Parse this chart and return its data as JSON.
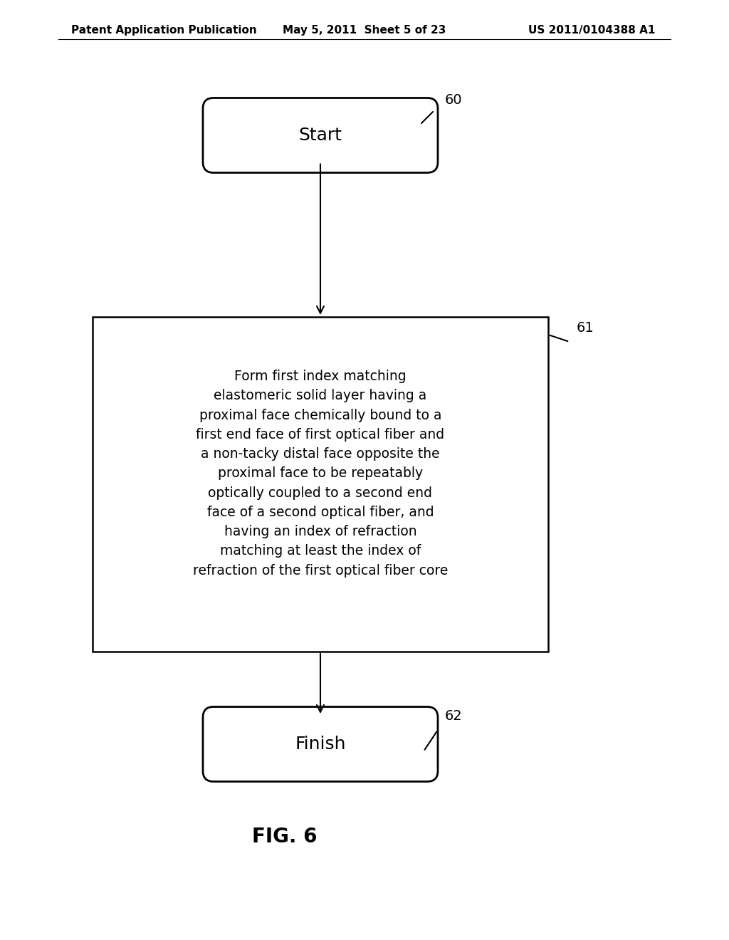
{
  "background_color": "#ffffff",
  "header_left": "Patent Application Publication",
  "header_center": "May 5, 2011  Sheet 5 of 23",
  "header_right": "US 2011/0104388 A1",
  "header_fontsize": 11,
  "start_label": "Start",
  "start_ref": "60",
  "box_label": "Form first index matching\nelastomeric solid layer having a\nproximal face chemically bound to a\nfirst end face of first optical fiber and\na non-tacky distal face opposite the\nproximal face to be repeatably\noptically coupled to a second end\nface of a second optical fiber, and\nhaving an index of refraction\nmatching at least the index of\nrefraction of the first optical fiber core",
  "box_ref": "61",
  "finish_label": "Finish",
  "finish_ref": "62",
  "fig_label": "FIG. 6",
  "text_color": "#000000",
  "shape_edge_color": "#000000",
  "shape_fill_color": "#ffffff",
  "arrow_color": "#000000"
}
